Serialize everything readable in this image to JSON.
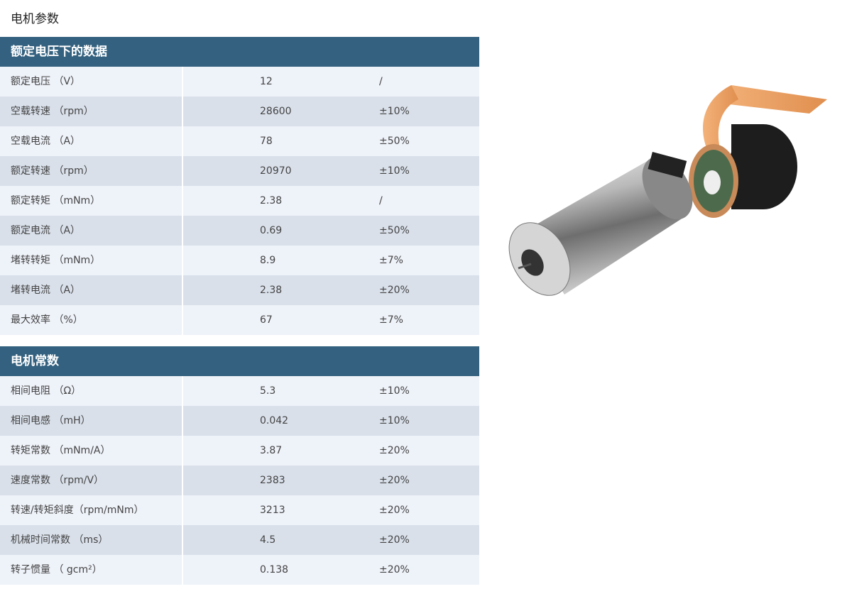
{
  "page_title": "电机参数",
  "sections": [
    {
      "title": "额定电压下的数据",
      "rows": [
        {
          "name": "额定电压 （V）",
          "value": "12",
          "tolerance": "/"
        },
        {
          "name": "空载转速 （rpm）",
          "value": "28600",
          "tolerance": "±10%"
        },
        {
          "name": "空载电流 （A）",
          "value": "78",
          "tolerance": "±50%"
        },
        {
          "name": "额定转速 （rpm）",
          "value": "20970",
          "tolerance": "±10%"
        },
        {
          "name": "额定转矩 （mNm）",
          "value": "2.38",
          "tolerance": "/"
        },
        {
          "name": "额定电流 （A）",
          "value": "0.69",
          "tolerance": "±50%"
        },
        {
          "name": "堵转转矩 （mNm）",
          "value": "8.9",
          "tolerance": "±7%"
        },
        {
          "name": "堵转电流 （A）",
          "value": "2.38",
          "tolerance": "±20%"
        },
        {
          "name": "最大效率 （%）",
          "value": "67",
          "tolerance": "±7%"
        }
      ]
    },
    {
      "title": "电机常数",
      "rows": [
        {
          "name": "相间电阻 （Ω）",
          "value": "5.3",
          "tolerance": "±10%"
        },
        {
          "name": "相间电感 （mH）",
          "value": "0.042",
          "tolerance": "±10%"
        },
        {
          "name": "转矩常数 （mNm/A）",
          "value": "3.87",
          "tolerance": "±20%"
        },
        {
          "name": "速度常数 （rpm/V）",
          "value": "2383",
          "tolerance": "±20%"
        },
        {
          "name": "转速/转矩斜度（rpm/mNm）",
          "value": "3213",
          "tolerance": "±20%"
        },
        {
          "name": "机械时间常数 （ms）",
          "value": "4.5",
          "tolerance": "±20%"
        },
        {
          "name": "转子惯量 （ gcm²）",
          "value": "0.138",
          "tolerance": "±20%"
        }
      ]
    }
  ],
  "colors": {
    "header": "#33617f",
    "row_light": "#eef2f9",
    "row_dark": "#d9e0ea"
  }
}
